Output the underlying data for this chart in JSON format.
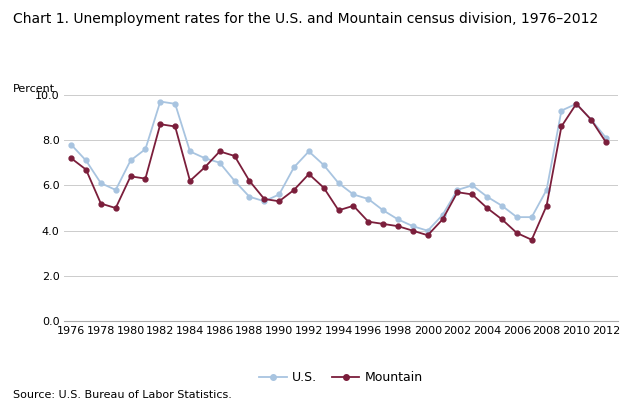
{
  "title": "Chart 1. Unemployment rates for the U.S. and Mountain census division, 1976–2012",
  "ylabel": "Percent",
  "source": "Source: U.S. Bureau of Labor Statistics.",
  "years": [
    1976,
    1977,
    1978,
    1979,
    1980,
    1981,
    1982,
    1983,
    1984,
    1985,
    1986,
    1987,
    1988,
    1989,
    1990,
    1991,
    1992,
    1993,
    1994,
    1995,
    1996,
    1997,
    1998,
    1999,
    2000,
    2001,
    2002,
    2003,
    2004,
    2005,
    2006,
    2007,
    2008,
    2009,
    2010,
    2011,
    2012
  ],
  "us": [
    7.8,
    7.1,
    6.1,
    5.8,
    7.1,
    7.6,
    9.7,
    9.6,
    7.5,
    7.2,
    7.0,
    6.2,
    5.5,
    5.3,
    5.6,
    6.8,
    7.5,
    6.9,
    6.1,
    5.6,
    5.4,
    4.9,
    4.5,
    4.2,
    4.0,
    4.7,
    5.8,
    6.0,
    5.5,
    5.1,
    4.6,
    4.6,
    5.8,
    9.3,
    9.6,
    8.9,
    8.1
  ],
  "mountain": [
    7.2,
    6.7,
    5.2,
    5.0,
    6.4,
    6.3,
    8.7,
    8.6,
    6.2,
    6.8,
    7.5,
    7.3,
    6.2,
    5.4,
    5.3,
    5.8,
    6.5,
    5.9,
    4.9,
    5.1,
    4.4,
    4.3,
    4.2,
    4.0,
    3.8,
    4.5,
    5.7,
    5.6,
    5.0,
    4.5,
    3.9,
    3.6,
    5.1,
    8.6,
    9.6,
    8.9,
    7.9
  ],
  "us_color": "#a8c4e0",
  "mountain_color": "#7b1e3b",
  "ylim": [
    0.0,
    10.0
  ],
  "yticks": [
    0.0,
    2.0,
    4.0,
    6.0,
    8.0,
    10.0
  ],
  "xtick_years": [
    1976,
    1978,
    1980,
    1982,
    1984,
    1986,
    1988,
    1990,
    1992,
    1994,
    1996,
    1998,
    2000,
    2002,
    2004,
    2006,
    2008,
    2010,
    2012
  ],
  "legend_us": "U.S.",
  "legend_mountain": "Mountain",
  "title_fontsize": 10,
  "tick_fontsize": 8,
  "label_fontsize": 8,
  "source_fontsize": 8
}
